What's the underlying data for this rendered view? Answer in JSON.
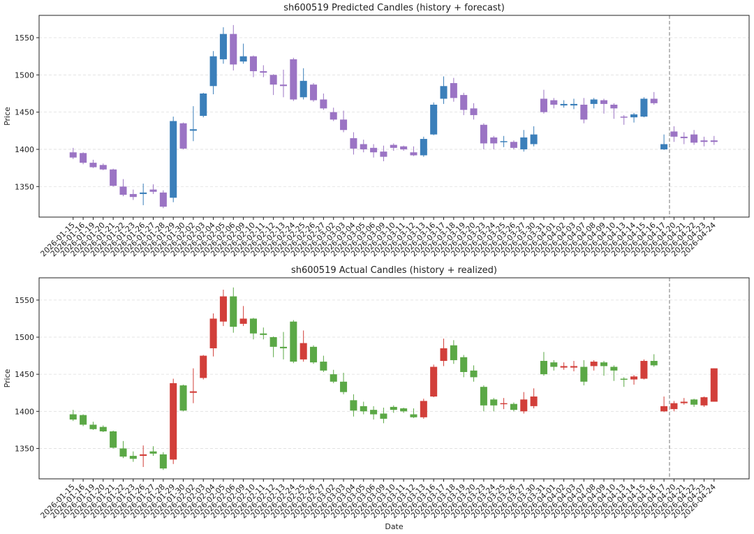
{
  "chart_data": [
    {
      "type": "candlestick",
      "title": "sh600519 Predicted Candles (history + forecast)",
      "ylabel": "Price",
      "x": [
        "2026-01-15",
        "2026-01-16",
        "2026-01-19",
        "2026-01-20",
        "2026-01-21",
        "2026-01-22",
        "2026-01-23",
        "2026-01-26",
        "2026-01-27",
        "2026-01-28",
        "2026-01-29",
        "2026-01-30",
        "2026-02-02",
        "2026-02-03",
        "2026-02-04",
        "2026-02-05",
        "2026-02-06",
        "2026-02-09",
        "2026-02-10",
        "2026-02-11",
        "2026-02-12",
        "2026-02-13",
        "2026-02-24",
        "2026-02-25",
        "2026-02-26",
        "2026-02-27",
        "2026-03-02",
        "2026-03-03",
        "2026-03-04",
        "2026-03-05",
        "2026-03-06",
        "2026-03-09",
        "2026-03-10",
        "2026-03-11",
        "2026-03-12",
        "2026-03-13",
        "2026-03-16",
        "2026-03-17",
        "2026-03-18",
        "2026-03-19",
        "2026-03-20",
        "2026-03-23",
        "2026-03-24",
        "2026-03-25",
        "2026-03-26",
        "2026-03-27",
        "2026-03-30",
        "2026-03-31",
        "2026-04-01",
        "2026-04-02",
        "2026-04-03",
        "2026-04-07",
        "2026-04-08",
        "2026-04-09",
        "2026-04-10",
        "2026-04-13",
        "2026-04-14",
        "2026-04-15",
        "2026-04-16",
        "2026-04-17",
        "2026-04-20",
        "2026-04-21",
        "2026-04-22",
        "2026-04-23",
        "2026-04-24"
      ],
      "open": [
        1396,
        1395,
        1382,
        1379,
        1373,
        1350,
        1340,
        1340,
        1346,
        1342,
        1335,
        1435,
        1425,
        1445,
        1485,
        1521,
        1555,
        1518,
        1525,
        1505,
        1500,
        1487,
        1521,
        1470,
        1487,
        1467,
        1450,
        1440,
        1415,
        1407,
        1402,
        1397,
        1406,
        1404,
        1396,
        1392,
        1420,
        1468,
        1489,
        1473,
        1455,
        1433,
        1416,
        1410,
        1410,
        1400,
        1407,
        1468,
        1466,
        1459,
        1459,
        1460,
        1461,
        1466,
        1460,
        1444,
        1443,
        1444,
        1468,
        1400,
        1424,
        1417,
        1420,
        1412,
        1412
      ],
      "high": [
        1402,
        1396,
        1386,
        1381,
        1374,
        1360,
        1346,
        1354,
        1353,
        1345,
        1444,
        1436,
        1458,
        1476,
        1532,
        1564,
        1567,
        1542,
        1526,
        1513,
        1501,
        1507,
        1523,
        1509,
        1489,
        1475,
        1456,
        1452,
        1423,
        1413,
        1407,
        1405,
        1408,
        1405,
        1404,
        1417,
        1463,
        1498,
        1496,
        1476,
        1462,
        1435,
        1418,
        1418,
        1412,
        1426,
        1431,
        1480,
        1469,
        1466,
        1468,
        1469,
        1469,
        1468,
        1462,
        1446,
        1449,
        1470,
        1477,
        1420,
        1431,
        1423,
        1426,
        1417,
        1418
      ],
      "low": [
        1387,
        1380,
        1375,
        1372,
        1350,
        1337,
        1332,
        1325,
        1340,
        1321,
        1329,
        1400,
        1411,
        1443,
        1474,
        1515,
        1506,
        1515,
        1497,
        1497,
        1473,
        1470,
        1465,
        1467,
        1464,
        1453,
        1438,
        1423,
        1393,
        1396,
        1389,
        1384,
        1398,
        1398,
        1391,
        1390,
        1419,
        1461,
        1464,
        1446,
        1440,
        1400,
        1400,
        1403,
        1400,
        1397,
        1404,
        1448,
        1455,
        1456,
        1454,
        1435,
        1455,
        1448,
        1441,
        1433,
        1436,
        1443,
        1460,
        1399,
        1410,
        1407,
        1406,
        1404,
        1406
      ],
      "close": [
        1389,
        1382,
        1376,
        1373,
        1351,
        1339,
        1336,
        1342,
        1343,
        1323,
        1438,
        1401,
        1427,
        1475,
        1525,
        1555,
        1514,
        1525,
        1505,
        1503,
        1487,
        1485,
        1467,
        1492,
        1466,
        1455,
        1440,
        1426,
        1401,
        1400,
        1396,
        1390,
        1402,
        1400,
        1392,
        1414,
        1460,
        1485,
        1469,
        1453,
        1446,
        1408,
        1408,
        1411,
        1402,
        1416,
        1420,
        1450,
        1460,
        1461,
        1461,
        1440,
        1467,
        1461,
        1455,
        1443,
        1447,
        1468,
        1462,
        1407,
        1417,
        1415,
        1409,
        1410,
        1410
      ],
      "up_color": "#3b7fba",
      "down_color": "#9b74c4",
      "forecast_start": "2026-04-20",
      "ylim": [
        1309,
        1580
      ],
      "yticks": [
        1350,
        1400,
        1450,
        1500,
        1550
      ],
      "grid": true
    },
    {
      "type": "candlestick",
      "title": "sh600519 Actual Candles (history + realized)",
      "xlabel": "Date",
      "ylabel": "Price",
      "x": [
        "2026-01-15",
        "2026-01-16",
        "2026-01-19",
        "2026-01-20",
        "2026-01-21",
        "2026-01-22",
        "2026-01-23",
        "2026-01-26",
        "2026-01-27",
        "2026-01-28",
        "2026-01-29",
        "2026-01-30",
        "2026-02-02",
        "2026-02-03",
        "2026-02-04",
        "2026-02-05",
        "2026-02-06",
        "2026-02-09",
        "2026-02-10",
        "2026-02-11",
        "2026-02-12",
        "2026-02-13",
        "2026-02-24",
        "2026-02-25",
        "2026-02-26",
        "2026-02-27",
        "2026-03-02",
        "2026-03-03",
        "2026-03-04",
        "2026-03-05",
        "2026-03-06",
        "2026-03-09",
        "2026-03-10",
        "2026-03-11",
        "2026-03-12",
        "2026-03-13",
        "2026-03-16",
        "2026-03-17",
        "2026-03-18",
        "2026-03-19",
        "2026-03-20",
        "2026-03-23",
        "2026-03-24",
        "2026-03-25",
        "2026-03-26",
        "2026-03-27",
        "2026-03-30",
        "2026-03-31",
        "2026-04-01",
        "2026-04-02",
        "2026-04-03",
        "2026-04-07",
        "2026-04-08",
        "2026-04-09",
        "2026-04-10",
        "2026-04-13",
        "2026-04-14",
        "2026-04-15",
        "2026-04-16",
        "2026-04-17",
        "2026-04-20",
        "2026-04-21",
        "2026-04-22",
        "2026-04-23",
        "2026-04-24"
      ],
      "open": [
        1396,
        1395,
        1382,
        1379,
        1373,
        1350,
        1340,
        1340,
        1346,
        1342,
        1335,
        1435,
        1425,
        1445,
        1485,
        1521,
        1555,
        1518,
        1525,
        1505,
        1500,
        1487,
        1521,
        1470,
        1487,
        1467,
        1450,
        1440,
        1415,
        1407,
        1402,
        1397,
        1406,
        1404,
        1396,
        1392,
        1420,
        1468,
        1489,
        1473,
        1455,
        1433,
        1416,
        1410,
        1410,
        1400,
        1407,
        1468,
        1466,
        1459,
        1459,
        1460,
        1461,
        1466,
        1460,
        1444,
        1443,
        1444,
        1468,
        1400,
        1403,
        1411,
        1416,
        1408,
        1413
      ],
      "high": [
        1402,
        1396,
        1386,
        1381,
        1374,
        1360,
        1346,
        1354,
        1353,
        1345,
        1444,
        1436,
        1458,
        1476,
        1532,
        1564,
        1567,
        1542,
        1526,
        1513,
        1501,
        1507,
        1523,
        1509,
        1489,
        1475,
        1456,
        1452,
        1423,
        1413,
        1407,
        1405,
        1408,
        1405,
        1404,
        1417,
        1463,
        1498,
        1496,
        1476,
        1462,
        1435,
        1418,
        1418,
        1412,
        1426,
        1431,
        1480,
        1469,
        1466,
        1468,
        1469,
        1469,
        1468,
        1462,
        1446,
        1449,
        1470,
        1477,
        1420,
        1414,
        1418,
        1417,
        1420,
        1458
      ],
      "low": [
        1387,
        1380,
        1375,
        1372,
        1350,
        1337,
        1332,
        1325,
        1340,
        1321,
        1329,
        1400,
        1411,
        1443,
        1474,
        1515,
        1506,
        1515,
        1497,
        1497,
        1473,
        1470,
        1465,
        1467,
        1464,
        1453,
        1438,
        1423,
        1393,
        1396,
        1389,
        1384,
        1398,
        1398,
        1391,
        1390,
        1419,
        1461,
        1464,
        1446,
        1440,
        1400,
        1400,
        1403,
        1400,
        1397,
        1404,
        1448,
        1455,
        1456,
        1454,
        1435,
        1455,
        1448,
        1441,
        1433,
        1436,
        1443,
        1460,
        1399,
        1400,
        1409,
        1406,
        1406,
        1413
      ],
      "close": [
        1389,
        1382,
        1376,
        1373,
        1351,
        1339,
        1336,
        1342,
        1343,
        1323,
        1438,
        1401,
        1427,
        1475,
        1525,
        1555,
        1514,
        1525,
        1505,
        1503,
        1487,
        1485,
        1467,
        1492,
        1466,
        1455,
        1440,
        1426,
        1401,
        1400,
        1396,
        1390,
        1402,
        1400,
        1392,
        1414,
        1460,
        1485,
        1469,
        1453,
        1446,
        1408,
        1408,
        1411,
        1402,
        1416,
        1420,
        1450,
        1460,
        1461,
        1461,
        1440,
        1467,
        1461,
        1455,
        1443,
        1447,
        1468,
        1462,
        1407,
        1411,
        1413,
        1409,
        1419,
        1458
      ],
      "up_color": "#d23f3a",
      "down_color": "#5ba846",
      "forecast_start": "2026-04-20",
      "ylim": [
        1309,
        1580
      ],
      "yticks": [
        1350,
        1400,
        1450,
        1500,
        1550
      ],
      "grid": true
    }
  ]
}
